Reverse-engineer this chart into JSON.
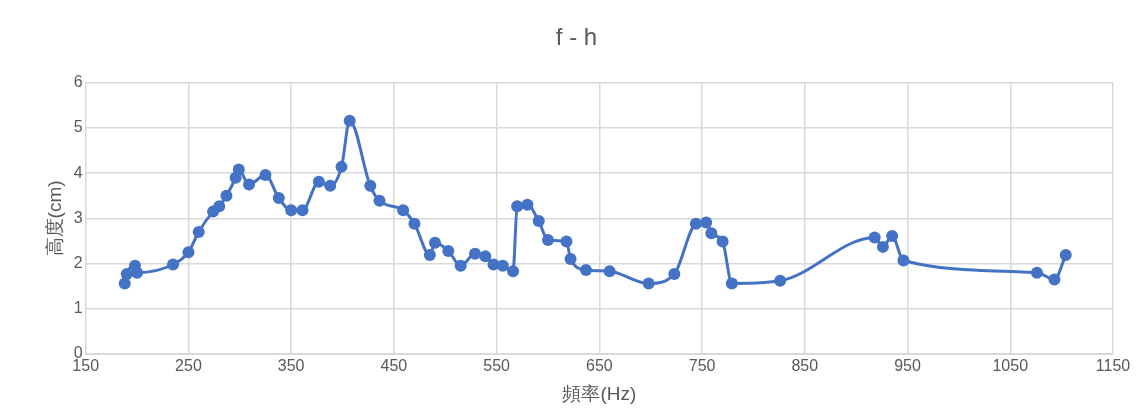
{
  "chart_data": {
    "type": "line",
    "title": "f - h",
    "xlabel": "頻率(Hz)",
    "ylabel": "高度(cm)",
    "x": [
      188,
      190,
      198,
      200,
      235,
      250,
      260,
      274,
      280,
      287,
      296,
      299,
      309,
      325,
      338,
      350,
      361,
      377,
      388,
      399,
      407,
      427,
      436,
      459,
      470,
      485,
      490,
      503,
      515,
      529,
      539,
      547,
      556,
      566,
      570,
      580,
      591,
      600,
      618,
      622,
      637,
      660,
      698,
      723,
      744,
      754,
      759,
      770,
      779,
      826,
      918,
      926,
      935,
      946,
      1076,
      1093,
      1104
    ],
    "series": [
      {
        "color": "#4472c4",
        "values": [
          1.56,
          1.77,
          1.95,
          1.8,
          1.98,
          2.25,
          2.7,
          3.15,
          3.27,
          3.5,
          3.9,
          4.08,
          3.75,
          3.96,
          3.45,
          3.18,
          3.18,
          3.81,
          3.72,
          4.14,
          5.16,
          3.72,
          3.39,
          3.18,
          2.88,
          2.19,
          2.46,
          2.28,
          1.95,
          2.22,
          2.16,
          1.98,
          1.95,
          1.83,
          3.27,
          3.3,
          2.94,
          2.52,
          2.49,
          2.1,
          1.86,
          1.83,
          1.56,
          1.77,
          2.88,
          2.91,
          2.67,
          2.49,
          1.56,
          1.62,
          2.58,
          2.37,
          2.61,
          2.07,
          1.8,
          1.65,
          2.19
        ]
      }
    ],
    "xlim": [
      150,
      1150
    ],
    "xticks": [
      150,
      250,
      350,
      450,
      550,
      650,
      750,
      850,
      950,
      1050,
      1150
    ],
    "ylim": [
      0,
      6
    ],
    "yticks": [
      0,
      1,
      2,
      3,
      4,
      5,
      6
    ],
    "grid": true,
    "legend": false,
    "marker": "circle",
    "line_style": "solid"
  }
}
